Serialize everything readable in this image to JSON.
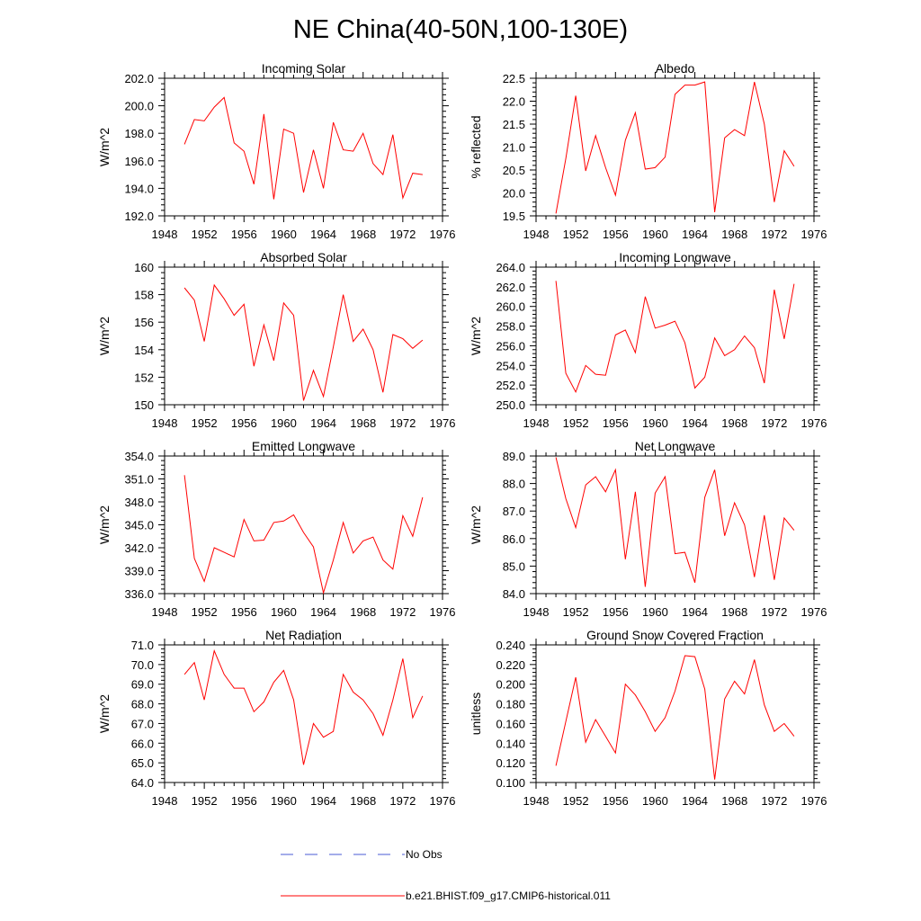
{
  "figure": {
    "title": "NE China(40-50N,100-130E)",
    "legend": [
      {
        "label": "No Obs",
        "color": "#4a5bd6",
        "style": "dashed"
      },
      {
        "label": "b.e21.BHIST.f09_g17.CMIP6-historical.011",
        "color": "#ff0000",
        "style": "solid"
      }
    ]
  },
  "chart_data": [
    {
      "type": "line",
      "title": "Incoming Solar",
      "ylabel": "W/m^2",
      "xlim": [
        1948,
        1976
      ],
      "xticks": [
        "1948",
        "1952",
        "1956",
        "1960",
        "1964",
        "1968",
        "1972",
        "1976"
      ],
      "ylim": [
        192.0,
        202.0
      ],
      "yticks": [
        "192.0",
        "194.0",
        "196.0",
        "198.0",
        "200.0",
        "202.0"
      ],
      "x": [
        1950,
        1951,
        1952,
        1953,
        1954,
        1955,
        1956,
        1957,
        1958,
        1959,
        1960,
        1961,
        1962,
        1963,
        1964,
        1965,
        1966,
        1967,
        1968,
        1969,
        1970,
        1971,
        1972,
        1973,
        1974
      ],
      "series": [
        {
          "name": "b.e21.BHIST.f09_g17.CMIP6-historical.011",
          "color": "#ff0000",
          "values": [
            197.2,
            199.0,
            198.9,
            199.9,
            200.6,
            197.3,
            196.7,
            194.3,
            199.4,
            193.2,
            198.3,
            198.0,
            193.7,
            196.8,
            194.0,
            198.8,
            196.8,
            196.7,
            198.0,
            195.8,
            195.0,
            197.9,
            193.3,
            195.1,
            195.0
          ]
        }
      ]
    },
    {
      "type": "line",
      "title": "Albedo",
      "ylabel": "% reflected",
      "xlim": [
        1948,
        1976
      ],
      "xticks": [
        "1948",
        "1952",
        "1956",
        "1960",
        "1964",
        "1968",
        "1972",
        "1976"
      ],
      "ylim": [
        19.5,
        22.5
      ],
      "yticks": [
        "19.5",
        "20.0",
        "20.5",
        "21.0",
        "21.5",
        "22.0",
        "22.5"
      ],
      "x": [
        1950,
        1951,
        1952,
        1953,
        1954,
        1955,
        1956,
        1957,
        1958,
        1959,
        1960,
        1961,
        1962,
        1963,
        1964,
        1965,
        1966,
        1967,
        1968,
        1969,
        1970,
        1971,
        1972,
        1973,
        1974
      ],
      "series": [
        {
          "name": "b.e21.BHIST.f09_g17.CMIP6-historical.011",
          "color": "#ff0000",
          "values": [
            19.55,
            20.75,
            22.12,
            20.48,
            21.25,
            20.55,
            19.95,
            21.15,
            21.75,
            20.52,
            20.55,
            20.78,
            22.15,
            22.35,
            22.35,
            22.42,
            19.58,
            21.2,
            21.38,
            21.25,
            22.42,
            21.5,
            19.8,
            20.92,
            20.58
          ]
        }
      ]
    },
    {
      "type": "line",
      "title": "Absorbed Solar",
      "ylabel": "W/m^2",
      "xlim": [
        1948,
        1976
      ],
      "xticks": [
        "1948",
        "1952",
        "1956",
        "1960",
        "1964",
        "1968",
        "1972",
        "1976"
      ],
      "ylim": [
        150,
        160
      ],
      "yticks": [
        "150",
        "152",
        "154",
        "156",
        "158",
        "160"
      ],
      "x": [
        1950,
        1951,
        1952,
        1953,
        1954,
        1955,
        1956,
        1957,
        1958,
        1959,
        1960,
        1961,
        1962,
        1963,
        1964,
        1965,
        1966,
        1967,
        1968,
        1969,
        1970,
        1971,
        1972,
        1973,
        1974
      ],
      "series": [
        {
          "name": "b.e21.BHIST.f09_g17.CMIP6-historical.011",
          "color": "#ff0000",
          "values": [
            158.5,
            157.6,
            154.6,
            158.7,
            157.7,
            156.5,
            157.3,
            152.8,
            155.8,
            153.2,
            157.4,
            156.5,
            150.3,
            152.5,
            150.6,
            154.2,
            158.0,
            154.6,
            155.5,
            154.0,
            150.9,
            155.1,
            154.8,
            154.1,
            154.7
          ]
        }
      ]
    },
    {
      "type": "line",
      "title": "Incoming Longwave",
      "ylabel": "W/m^2",
      "xlim": [
        1948,
        1976
      ],
      "xticks": [
        "1948",
        "1952",
        "1956",
        "1960",
        "1964",
        "1968",
        "1972",
        "1976"
      ],
      "ylim": [
        250.0,
        264.0
      ],
      "yticks": [
        "250.0",
        "252.0",
        "254.0",
        "256.0",
        "258.0",
        "260.0",
        "262.0",
        "264.0"
      ],
      "x": [
        1950,
        1951,
        1952,
        1953,
        1954,
        1955,
        1956,
        1957,
        1958,
        1959,
        1960,
        1961,
        1962,
        1963,
        1964,
        1965,
        1966,
        1967,
        1968,
        1969,
        1970,
        1971,
        1972,
        1973,
        1974
      ],
      "series": [
        {
          "name": "b.e21.BHIST.f09_g17.CMIP6-historical.011",
          "color": "#ff0000",
          "values": [
            262.6,
            253.2,
            251.3,
            254.0,
            253.1,
            253.0,
            257.1,
            257.6,
            255.3,
            261.0,
            257.8,
            258.1,
            258.5,
            256.3,
            251.7,
            252.8,
            256.8,
            255.0,
            255.6,
            257.0,
            255.8,
            252.2,
            261.7,
            256.7,
            262.3
          ]
        }
      ]
    },
    {
      "type": "line",
      "title": "Emitted Longwave",
      "ylabel": "W/m^2",
      "xlim": [
        1948,
        1976
      ],
      "xticks": [
        "1948",
        "1952",
        "1956",
        "1960",
        "1964",
        "1968",
        "1972",
        "1976"
      ],
      "ylim": [
        336.0,
        354.0
      ],
      "yticks": [
        "336.0",
        "339.0",
        "342.0",
        "345.0",
        "348.0",
        "351.0",
        "354.0"
      ],
      "x": [
        1950,
        1951,
        1952,
        1953,
        1954,
        1955,
        1956,
        1957,
        1958,
        1959,
        1960,
        1961,
        1962,
        1963,
        1964,
        1965,
        1966,
        1967,
        1968,
        1969,
        1970,
        1971,
        1972,
        1973,
        1974
      ],
      "series": [
        {
          "name": "b.e21.BHIST.f09_g17.CMIP6-historical.011",
          "color": "#ff0000",
          "values": [
            351.5,
            340.6,
            337.6,
            342.0,
            341.4,
            340.8,
            345.7,
            342.9,
            343.0,
            345.3,
            345.5,
            346.3,
            344.0,
            342.1,
            336.1,
            340.4,
            345.3,
            341.3,
            342.9,
            343.4,
            340.4,
            339.2,
            346.2,
            343.5,
            348.6
          ]
        }
      ]
    },
    {
      "type": "line",
      "title": "Net Longwave",
      "ylabel": "W/m^2",
      "xlim": [
        1948,
        1976
      ],
      "xticks": [
        "1948",
        "1952",
        "1956",
        "1960",
        "1964",
        "1968",
        "1972",
        "1976"
      ],
      "ylim": [
        84.0,
        89.0
      ],
      "yticks": [
        "84.0",
        "85.0",
        "86.0",
        "87.0",
        "88.0",
        "89.0"
      ],
      "x": [
        1950,
        1951,
        1952,
        1953,
        1954,
        1955,
        1956,
        1957,
        1958,
        1959,
        1960,
        1961,
        1962,
        1963,
        1964,
        1965,
        1966,
        1967,
        1968,
        1969,
        1970,
        1971,
        1972,
        1973,
        1974
      ],
      "series": [
        {
          "name": "b.e21.BHIST.f09_g17.CMIP6-historical.011",
          "color": "#ff0000",
          "values": [
            88.95,
            87.45,
            86.4,
            87.95,
            88.25,
            87.7,
            88.5,
            85.25,
            87.7,
            84.25,
            87.65,
            88.25,
            85.45,
            85.5,
            84.4,
            87.5,
            88.5,
            86.1,
            87.3,
            86.5,
            84.6,
            86.85,
            84.5,
            86.75,
            86.3
          ]
        }
      ]
    },
    {
      "type": "line",
      "title": "Net Radiation",
      "ylabel": "W/m^2",
      "xlim": [
        1948,
        1976
      ],
      "xticks": [
        "1948",
        "1952",
        "1956",
        "1960",
        "1964",
        "1968",
        "1972",
        "1976"
      ],
      "ylim": [
        64.0,
        71.0
      ],
      "yticks": [
        "64.0",
        "65.0",
        "66.0",
        "67.0",
        "68.0",
        "69.0",
        "70.0",
        "71.0"
      ],
      "x": [
        1950,
        1951,
        1952,
        1953,
        1954,
        1955,
        1956,
        1957,
        1958,
        1959,
        1960,
        1961,
        1962,
        1963,
        1964,
        1965,
        1966,
        1967,
        1968,
        1969,
        1970,
        1971,
        1972,
        1973,
        1974
      ],
      "series": [
        {
          "name": "b.e21.BHIST.f09_g17.CMIP6-historical.011",
          "color": "#ff0000",
          "values": [
            69.5,
            70.1,
            68.2,
            70.7,
            69.5,
            68.8,
            68.8,
            67.6,
            68.1,
            69.1,
            69.7,
            68.2,
            64.9,
            67.0,
            66.3,
            66.6,
            69.5,
            68.6,
            68.2,
            67.5,
            66.4,
            68.2,
            70.3,
            67.3,
            68.4
          ]
        }
      ]
    },
    {
      "type": "line",
      "title": "Ground Snow Covered Fraction",
      "ylabel": "unitless",
      "xlim": [
        1948,
        1976
      ],
      "xticks": [
        "1948",
        "1952",
        "1956",
        "1960",
        "1964",
        "1968",
        "1972",
        "1976"
      ],
      "ylim": [
        0.1,
        0.24
      ],
      "yticks": [
        "0.100",
        "0.120",
        "0.140",
        "0.160",
        "0.180",
        "0.200",
        "0.220",
        "0.240"
      ],
      "x": [
        1950,
        1951,
        1952,
        1953,
        1954,
        1955,
        1956,
        1957,
        1958,
        1959,
        1960,
        1961,
        1962,
        1963,
        1964,
        1965,
        1966,
        1967,
        1968,
        1969,
        1970,
        1971,
        1972,
        1973,
        1974
      ],
      "series": [
        {
          "name": "b.e21.BHIST.f09_g17.CMIP6-historical.011",
          "color": "#ff0000",
          "values": [
            0.117,
            0.162,
            0.207,
            0.141,
            0.164,
            0.147,
            0.13,
            0.2,
            0.189,
            0.172,
            0.152,
            0.166,
            0.193,
            0.229,
            0.228,
            0.195,
            0.103,
            0.185,
            0.203,
            0.19,
            0.225,
            0.179,
            0.152,
            0.16,
            0.147
          ]
        }
      ]
    }
  ]
}
